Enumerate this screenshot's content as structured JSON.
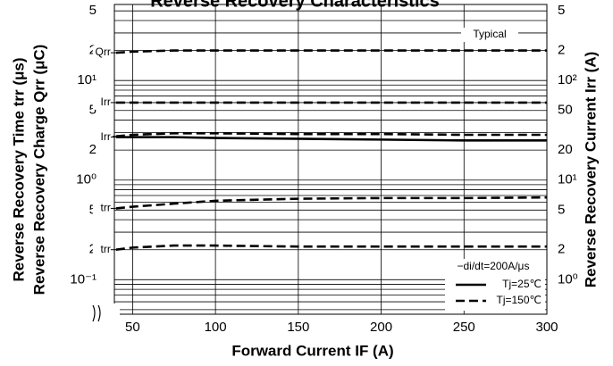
{
  "chart_data": {
    "type": "line",
    "title": "Reverse Recovery Characteristics",
    "x_label": "Forward Current  IF (A)",
    "y_label": [
      "Reverse Recovery Time trr (μs)",
      "Reverse Recovery Charge Qrr (μC)"
    ],
    "y2_label": "Reverse Recovery Current Irr (A)",
    "annotation": "Typical",
    "log_y": true,
    "grid": true,
    "color": "#000000",
    "x": [
      40,
      50,
      75,
      100,
      150,
      200,
      250,
      300
    ],
    "xlim": [
      39,
      300
    ],
    "xticks": [
      50,
      100,
      150,
      200,
      250,
      300
    ],
    "ylim": [
      0.045,
      58
    ],
    "yticks": [
      {
        "value": 50,
        "label": "5"
      },
      {
        "value": 20,
        "label": "2"
      },
      {
        "value": 10,
        "label": "10¹"
      },
      5,
      2,
      {
        "value": 1,
        "label": "10⁰"
      },
      {
        "value": 0.5,
        "label": "5"
      },
      {
        "value": 0.2,
        "label": "2"
      },
      {
        "value": 0.1,
        "label": "10⁻¹"
      }
    ],
    "y_minor_ticks": [
      0.05,
      0.06,
      0.07,
      0.08,
      0.09,
      0.3,
      0.4,
      0.6,
      0.7,
      0.8,
      0.9,
      3,
      4,
      6,
      7,
      8,
      9,
      30,
      40
    ],
    "y2lim": [
      0.45,
      580
    ],
    "y2ticks": [
      {
        "value": 500,
        "label": "5"
      },
      {
        "value": 200,
        "label": "2"
      },
      {
        "value": 100,
        "label": "10²"
      },
      50,
      20,
      {
        "value": 10,
        "label": "10¹"
      },
      5,
      2,
      {
        "value": 1,
        "label": "10⁰"
      }
    ],
    "series": [
      {
        "label": "Qrr",
        "dash": true,
        "values": [
          19,
          19.5,
          20,
          20,
          20,
          20,
          20,
          20
        ]
      },
      {
        "label": "Irr",
        "dash": true,
        "axis": "y2",
        "values": [
          60,
          60,
          60,
          60,
          60,
          60,
          60,
          60
        ]
      },
      {
        "label": "Qrr",
        "dash": true,
        "values": [
          2.75,
          2.85,
          2.95,
          2.95,
          2.9,
          2.9,
          2.85,
          2.85
        ]
      },
      {
        "label": "Irr",
        "dash": false,
        "axis": "y2",
        "values": [
          27,
          27,
          27,
          26.5,
          26,
          25.5,
          25,
          25
        ]
      },
      {
        "label": "trr",
        "dash": true,
        "values": [
          0.52,
          0.54,
          0.58,
          0.62,
          0.65,
          0.66,
          0.66,
          0.67
        ]
      },
      {
        "label": "trr",
        "dash": true,
        "values": [
          0.2,
          0.21,
          0.22,
          0.22,
          0.215,
          0.215,
          0.215,
          0.215
        ]
      }
    ],
    "legend": {
      "title": "−di/dt=200A/μs",
      "position": "lower right",
      "entries": [
        {
          "label": "Tj=25℃",
          "dash": false
        },
        {
          "label": "Tj=150℃",
          "dash": true
        }
      ]
    }
  }
}
